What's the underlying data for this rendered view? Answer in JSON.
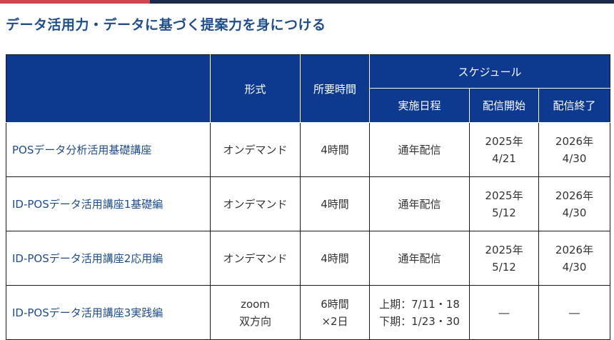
{
  "heading": "データ活用力・データに基づく提案力を身につける",
  "colors": {
    "accent_bar_red": "#c9474e",
    "accent_bar_navy": "#1b2a4a",
    "header_bg": "#0d3a8f",
    "heading_text": "#1f4e89"
  },
  "table": {
    "headers": {
      "format": "形式",
      "duration": "所要時間",
      "schedule": "スケジュール",
      "date": "実施日程",
      "start": "配信開始",
      "end": "配信終了"
    },
    "rows": [
      {
        "name": "POSデータ分析活用基礎講座",
        "format": [
          "オンデマンド"
        ],
        "duration": [
          "4時間"
        ],
        "date": [
          "通年配信"
        ],
        "start": [
          "2025年",
          "4/21"
        ],
        "end": [
          "2026年",
          "4/30"
        ]
      },
      {
        "name": "ID-POSデータ活用講座1基礎編",
        "format": [
          "オンデマンド"
        ],
        "duration": [
          "4時間"
        ],
        "date": [
          "通年配信"
        ],
        "start": [
          "2025年",
          "5/12"
        ],
        "end": [
          "2026年",
          "4/30"
        ]
      },
      {
        "name": "ID-POSデータ活用講座2応用編",
        "format": [
          "オンデマンド"
        ],
        "duration": [
          "4時間"
        ],
        "date": [
          "通年配信"
        ],
        "start": [
          "2025年",
          "5/12"
        ],
        "end": [
          "2026年",
          "4/30"
        ]
      },
      {
        "name": "ID-POSデータ活用講座3実践編",
        "format": [
          "zoom",
          "双方向"
        ],
        "duration": [
          "6時間",
          "×2日"
        ],
        "date": [
          "上期：7/11・18",
          "下期：1/23・30"
        ],
        "start": [
          "―"
        ],
        "end": [
          "―"
        ]
      }
    ]
  }
}
